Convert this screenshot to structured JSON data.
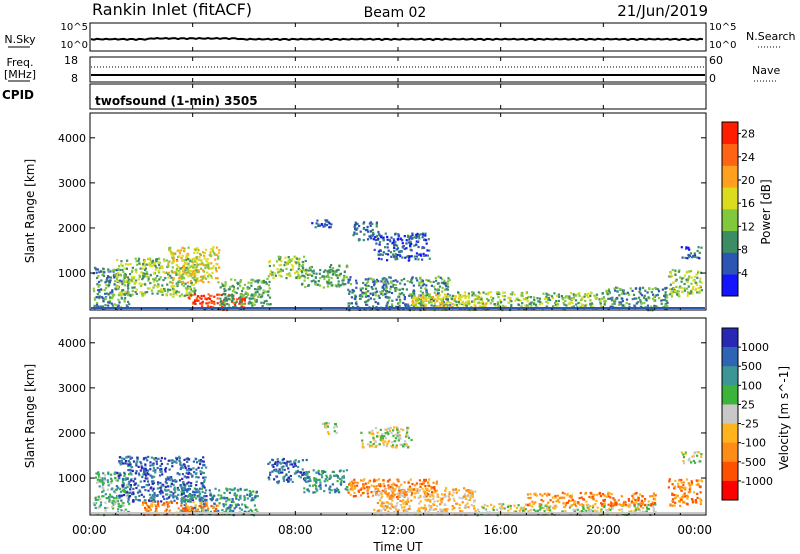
{
  "header": {
    "station": "Rankin Inlet (fitACF)",
    "beam": "Beam 02",
    "date": "21/Jun/2019"
  },
  "nsky_panel": {
    "left_label": "N.Sky",
    "left_ticks": [
      "10^5",
      "10^0"
    ],
    "right_ticks": [
      "10^5",
      "10^0"
    ],
    "right_label": "N.Search"
  },
  "freq_panel": {
    "label_line1": "Freq.",
    "label_line2": "[MHz]",
    "left_ticks": [
      "18",
      "8"
    ],
    "right_ticks": [
      "60",
      "0"
    ],
    "right_label": "Nave"
  },
  "cpid": {
    "label": "CPID",
    "program": "twofsound (1-min) 3505"
  },
  "axes": {
    "ylabel": "Slant Range [km]",
    "xlabel": "Time UT",
    "y_ticks": [
      "1000",
      "2000",
      "3000",
      "4000"
    ],
    "y_tick_values": [
      1000,
      2000,
      3000,
      4000
    ],
    "ylim": [
      180,
      4550
    ],
    "x_ticks": [
      "00:00",
      "04:00",
      "08:00",
      "12:00",
      "16:00",
      "20:00",
      "00:00"
    ],
    "x_tick_hours": [
      0,
      4,
      8,
      12,
      16,
      20,
      24
    ],
    "xlim_hours": [
      0,
      24
    ]
  },
  "chart_data": [
    {
      "type": "heatmap",
      "panel": "power",
      "colorbar_label": "Power [dB]",
      "colorbar_ticks": [
        "4",
        "8",
        "12",
        "16",
        "20",
        "24",
        "28"
      ],
      "colorbar_tick_values": [
        4,
        8,
        12,
        16,
        20,
        24,
        28
      ],
      "colorbar_range": [
        0,
        30
      ],
      "colorbar_colors": [
        "#1414ff",
        "#2d55b4",
        "#3c8c64",
        "#82c83c",
        "#dcdc1e",
        "#ffa01e",
        "#ff6414",
        "#ff1e00"
      ],
      "regions": [
        {
          "t0": 0.1,
          "t1": 1.5,
          "r0": 200,
          "r1": 1150,
          "v": 9
        },
        {
          "t0": 1.0,
          "t1": 4.2,
          "r0": 500,
          "r1": 1350,
          "v": 14
        },
        {
          "t0": 3.0,
          "t1": 5.0,
          "r0": 800,
          "r1": 1600,
          "v": 17
        },
        {
          "t0": 3.8,
          "t1": 6.0,
          "r0": 200,
          "r1": 560,
          "v": 27
        },
        {
          "t0": 5.0,
          "t1": 7.0,
          "r0": 250,
          "r1": 900,
          "v": 11
        },
        {
          "t0": 6.9,
          "t1": 8.4,
          "r0": 900,
          "r1": 1400,
          "v": 13
        },
        {
          "t0": 8.2,
          "t1": 10.0,
          "r0": 700,
          "r1": 1200,
          "v": 11
        },
        {
          "t0": 8.6,
          "t1": 9.4,
          "r0": 2020,
          "r1": 2220,
          "v": 6
        },
        {
          "t0": 10.2,
          "t1": 11.2,
          "r0": 1750,
          "r1": 2150,
          "v": 7
        },
        {
          "t0": 11.0,
          "t1": 13.2,
          "r0": 1300,
          "r1": 1900,
          "v": 6
        },
        {
          "t0": 10.0,
          "t1": 14.0,
          "r0": 200,
          "r1": 950,
          "v": 10
        },
        {
          "t0": 12.5,
          "t1": 15.5,
          "r0": 200,
          "r1": 550,
          "v": 18
        },
        {
          "t0": 14.0,
          "t1": 20.0,
          "r0": 200,
          "r1": 600,
          "v": 12
        },
        {
          "t0": 20.0,
          "t1": 22.5,
          "r0": 200,
          "r1": 700,
          "v": 10
        },
        {
          "t0": 22.5,
          "t1": 23.8,
          "r0": 500,
          "r1": 1100,
          "v": 14
        },
        {
          "t0": 23.0,
          "t1": 23.8,
          "r0": 1350,
          "r1": 1600,
          "v": 6
        }
      ]
    },
    {
      "type": "heatmap",
      "panel": "velocity",
      "colorbar_label": "Velocity [m s^-1]",
      "colorbar_ticks": [
        "1000",
        "500",
        "100",
        "25",
        "-25",
        "-100",
        "-500",
        "-1000"
      ],
      "colorbar_colors": [
        "#2828b4",
        "#2d64b4",
        "#3c9696",
        "#3cb43c",
        "#c8c8c8",
        "#ffb41e",
        "#ff8c14",
        "#ff5000",
        "#ff0000"
      ],
      "regions": [
        {
          "t0": 0.1,
          "t1": 1.5,
          "r0": 200,
          "r1": 1150,
          "v": 3
        },
        {
          "t0": 1.0,
          "t1": 4.5,
          "r0": 500,
          "r1": 1500,
          "v": 1
        },
        {
          "t0": 3.5,
          "t1": 6.5,
          "r0": 200,
          "r1": 800,
          "v": 2
        },
        {
          "t0": 2.0,
          "t1": 5.0,
          "r0": 200,
          "r1": 500,
          "v": 6
        },
        {
          "t0": 6.9,
          "t1": 8.4,
          "r0": 900,
          "r1": 1450,
          "v": 1
        },
        {
          "t0": 8.3,
          "t1": 10.0,
          "r0": 700,
          "r1": 1200,
          "v": 2
        },
        {
          "t0": 9.0,
          "t1": 9.6,
          "r0": 2000,
          "r1": 2250,
          "v": 4
        },
        {
          "t0": 10.5,
          "t1": 12.5,
          "r0": 1700,
          "r1": 2150,
          "v": 4
        },
        {
          "t0": 10.0,
          "t1": 13.5,
          "r0": 600,
          "r1": 1000,
          "v": 6
        },
        {
          "t0": 11.0,
          "t1": 15.0,
          "r0": 200,
          "r1": 800,
          "v": 5
        },
        {
          "t0": 15.0,
          "t1": 22.0,
          "r0": 200,
          "r1": 450,
          "v": 4
        },
        {
          "t0": 17.0,
          "t1": 22.0,
          "r0": 400,
          "r1": 700,
          "v": 6
        },
        {
          "t0": 22.5,
          "t1": 23.8,
          "r0": 400,
          "r1": 1000,
          "v": 6
        },
        {
          "t0": 23.0,
          "t1": 23.8,
          "r0": 1350,
          "r1": 1600,
          "v": 4
        }
      ]
    }
  ]
}
